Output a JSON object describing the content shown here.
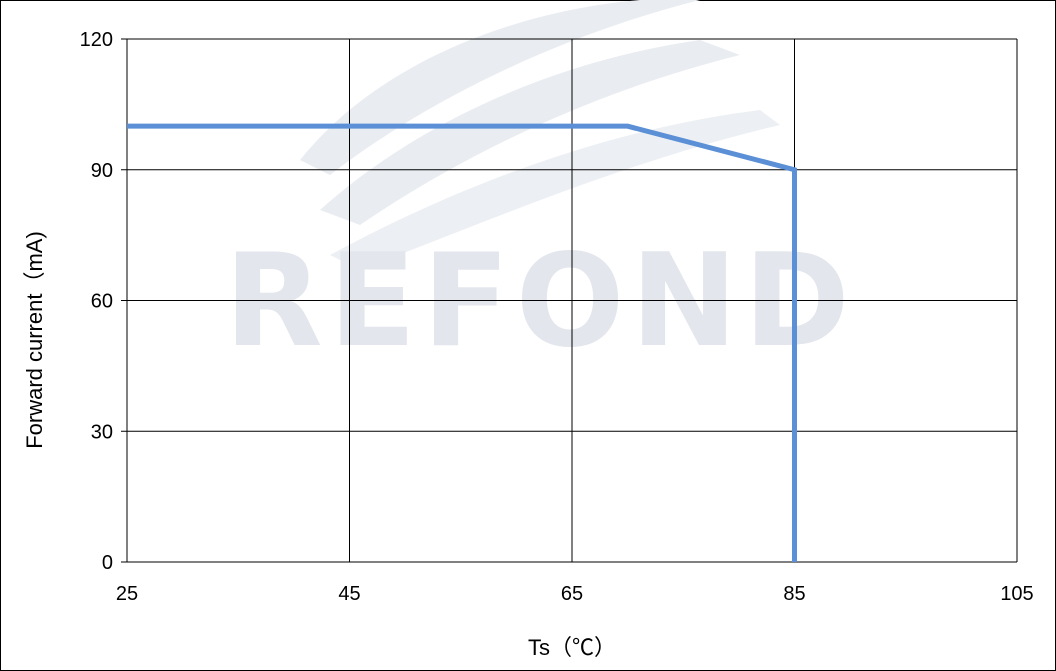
{
  "chart_data": {
    "type": "line",
    "title": "",
    "xlabel": "Ts（℃）",
    "ylabel": "Forward current（mA)",
    "xlim": [
      25,
      105
    ],
    "ylim": [
      0,
      120
    ],
    "x_ticks": [
      25,
      45,
      65,
      85,
      105
    ],
    "y_ticks": [
      0,
      30,
      60,
      90,
      120
    ],
    "grid": true,
    "legend": "none",
    "series": [
      {
        "x": [
          25,
          70,
          85,
          85
        ],
        "y": [
          100,
          100,
          90,
          0
        ],
        "color": "#5b8fd6"
      }
    ]
  },
  "watermark": {
    "text": "REFOND"
  },
  "colors": {
    "series": "#5b8fd6",
    "grid": "#000000",
    "watermark": "#e3e6ec"
  }
}
